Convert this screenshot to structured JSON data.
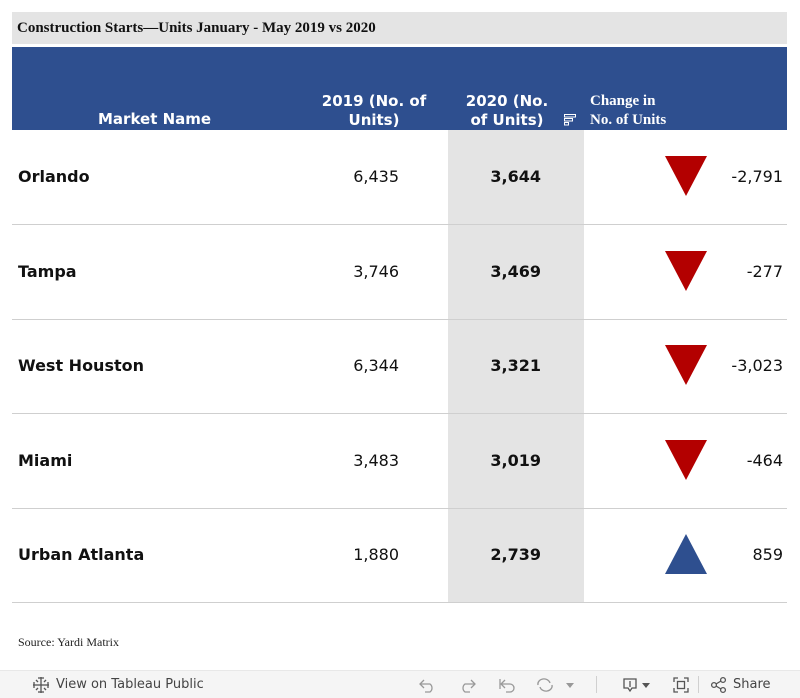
{
  "title": "Construction Starts—Units January - May 2019 vs 2020",
  "headers": {
    "market": "Market Name",
    "y2019_line1": "2019 (No. of",
    "y2019_line2": "Units)",
    "y2020_line1": "2020 (No.",
    "y2020_line2": "of Units)",
    "change_line1": "Change in",
    "change_line2": "No. of Units"
  },
  "rows": [
    {
      "market": "Orlando",
      "y2019": "6,435",
      "y2020": "3,644",
      "change": "-2,791",
      "direction": "down"
    },
    {
      "market": "Tampa",
      "y2019": "3,746",
      "y2020": "3,469",
      "change": "-277",
      "direction": "down"
    },
    {
      "market": "West Houston",
      "y2019": "6,344",
      "y2020": "3,321",
      "change": "-3,023",
      "direction": "down"
    },
    {
      "market": "Miami",
      "y2019": "3,483",
      "y2020": "3,019",
      "change": "-464",
      "direction": "down"
    },
    {
      "market": "Urban Atlanta",
      "y2019": "1,880",
      "y2020": "2,739",
      "change": "859",
      "direction": "up"
    }
  ],
  "colors": {
    "down": "#b30000",
    "up": "#2e4f8f",
    "header": "#2e4f8f"
  },
  "source": "Source: Yardi Matrix",
  "toolbar": {
    "view_label": "View on Tableau Public",
    "share_label": "Share",
    "icons": [
      "tableau-logo-icon",
      "undo-icon",
      "redo-icon",
      "revert-icon",
      "refresh-icon",
      "download-icon",
      "fullscreen-icon",
      "share-icon"
    ]
  }
}
